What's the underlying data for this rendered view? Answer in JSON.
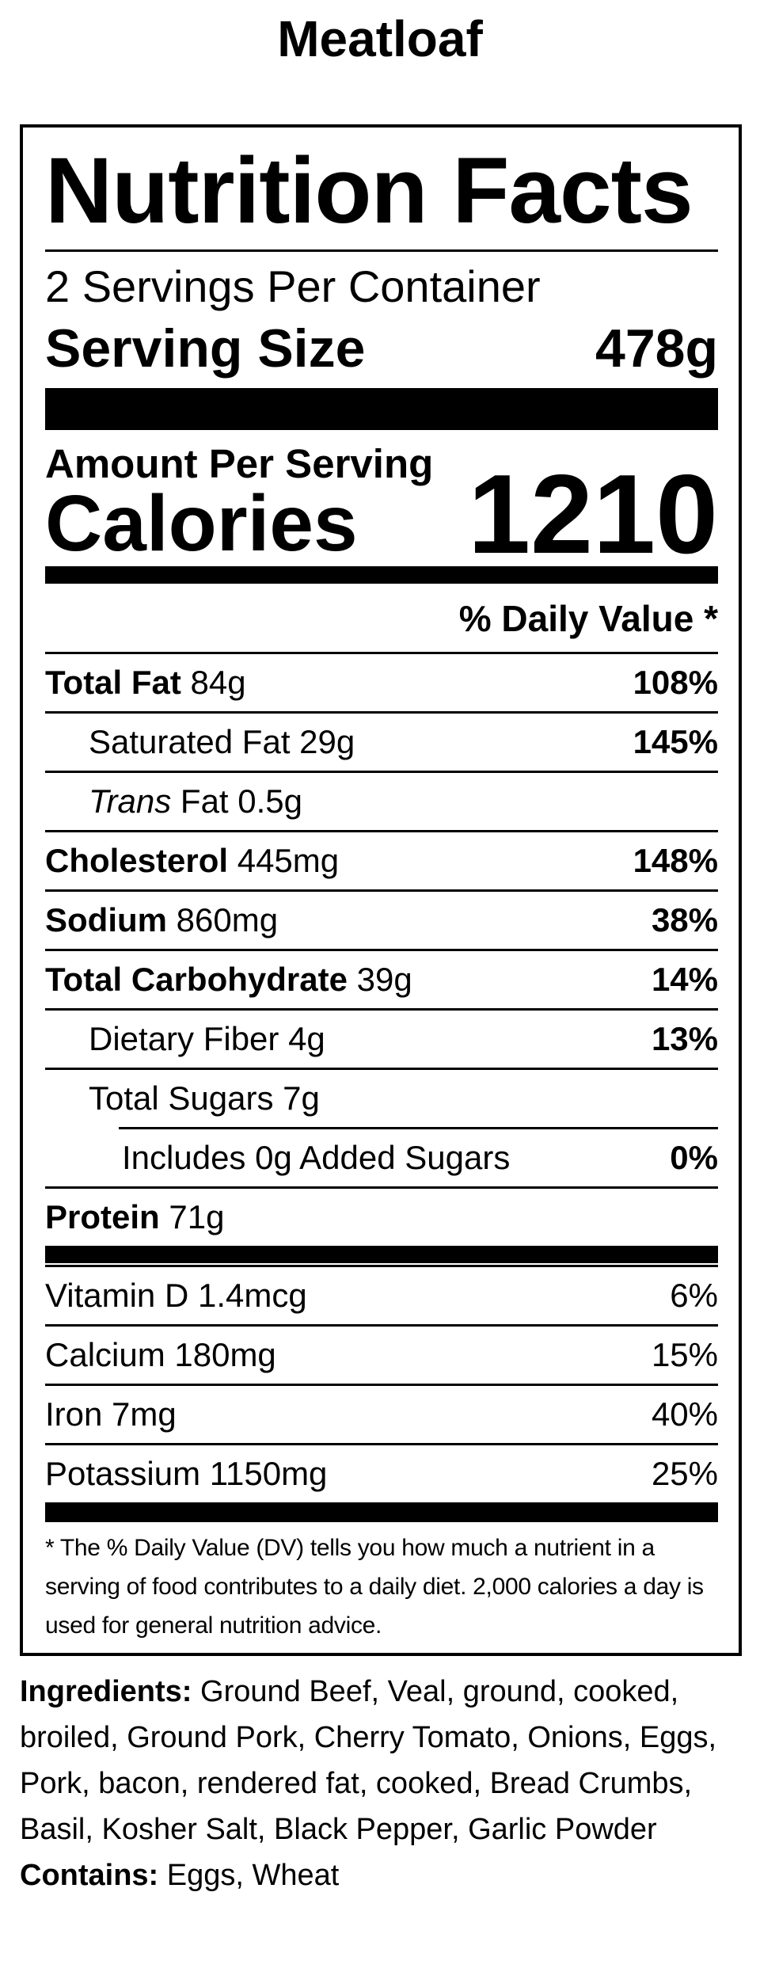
{
  "title": "Meatloaf",
  "colors": {
    "text": "#000000",
    "background": "#ffffff"
  },
  "label": {
    "heading": "Nutrition Facts",
    "servings_per_container": "2 Servings Per Container",
    "serving_size": {
      "label": "Serving Size",
      "value": "478g"
    },
    "amount_per_serving": "Amount Per Serving",
    "calories": {
      "label": "Calories",
      "value": "1210"
    },
    "daily_value_header": "% Daily Value *",
    "nutrient_rows": [
      {
        "name": "Total Fat",
        "name_bold": true,
        "amount": "84g",
        "dv": "108%",
        "dv_bold": true,
        "indent": 0
      },
      {
        "name": "Saturated Fat",
        "name_bold": false,
        "amount": "29g",
        "dv": "145%",
        "dv_bold": true,
        "indent": 1
      },
      {
        "name": "Trans",
        "name_italic": true,
        "name_suffix": "Fat",
        "amount": "0.5g",
        "dv": "",
        "indent": 1
      },
      {
        "name": "Cholesterol",
        "name_bold": true,
        "amount": "445mg",
        "dv": "148%",
        "dv_bold": true,
        "indent": 0
      },
      {
        "name": "Sodium",
        "name_bold": true,
        "amount": "860mg",
        "dv": "38%",
        "dv_bold": true,
        "indent": 0
      },
      {
        "name": "Total Carbohydrate",
        "name_bold": true,
        "amount": "39g",
        "dv": "14%",
        "dv_bold": true,
        "indent": 0
      },
      {
        "name": "Dietary Fiber",
        "name_bold": false,
        "amount": "4g",
        "dv": "13%",
        "dv_bold": true,
        "indent": 1
      },
      {
        "name": "Total Sugars",
        "name_bold": false,
        "amount": "7g",
        "dv": "",
        "indent": 1
      },
      {
        "name": "Includes 0g Added Sugars",
        "name_bold": false,
        "amount": "",
        "dv": "0%",
        "dv_bold": true,
        "indent": 2
      },
      {
        "name": "Protein",
        "name_bold": true,
        "amount": "71g",
        "dv": "",
        "indent": 0
      }
    ],
    "vitamin_rows": [
      {
        "name": "Vitamin D",
        "amount": "1.4mcg",
        "dv": "6%"
      },
      {
        "name": "Calcium",
        "amount": "180mg",
        "dv": "15%"
      },
      {
        "name": "Iron",
        "amount": "7mg",
        "dv": "40%"
      },
      {
        "name": "Potassium",
        "amount": "1150mg",
        "dv": "25%"
      }
    ],
    "footnote": "* The % Daily Value (DV) tells you how much a nutrient in a serving of food contributes to a daily diet. 2,000 calories a day is used for general nutrition advice."
  },
  "ingredients": {
    "label": "Ingredients:",
    "text": "Ground Beef, Veal, ground, cooked, broiled, Ground Pork, Cherry Tomato, Onions, Eggs, Pork, bacon, rendered fat, cooked, Bread Crumbs, Basil, Kosher Salt, Black Pepper, Garlic Powder"
  },
  "contains": {
    "label": "Contains:",
    "text": "Eggs, Wheat"
  }
}
